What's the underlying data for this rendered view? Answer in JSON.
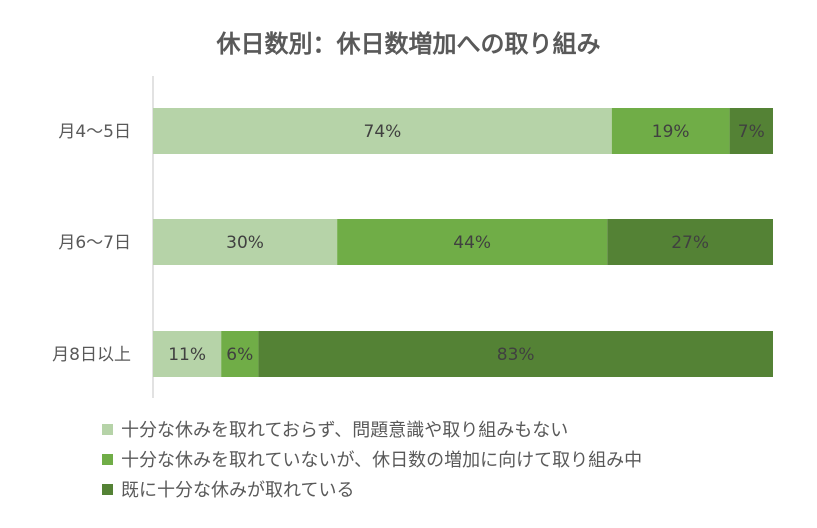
{
  "chart_data": {
    "type": "bar",
    "orientation": "horizontal",
    "stacked": "percent",
    "title": "休日数別：休日数増加への取り組み",
    "categories": [
      "月4〜5日",
      "月6〜7日",
      "月8日以上"
    ],
    "series": [
      {
        "name": "十分な休みを取れておらず、問題意識や取り組みもない",
        "values": [
          74,
          30,
          11
        ],
        "labels": [
          "74%",
          "30%",
          "11%"
        ],
        "color": "#b6d3a8"
      },
      {
        "name": "十分な休みを取れていないが、休日数の増加に向けて取り組み中",
        "values": [
          19,
          44,
          6
        ],
        "labels": [
          "19%",
          "44%",
          "6%"
        ],
        "color": "#70ad47"
      },
      {
        "name": "既に十分な休みが取れている",
        "values": [
          7,
          27,
          83
        ],
        "labels": [
          "7%",
          "27%",
          "83%"
        ],
        "color": "#548235"
      }
    ],
    "xlim": [
      0,
      100
    ],
    "legend_position": "bottom",
    "grid": false
  }
}
